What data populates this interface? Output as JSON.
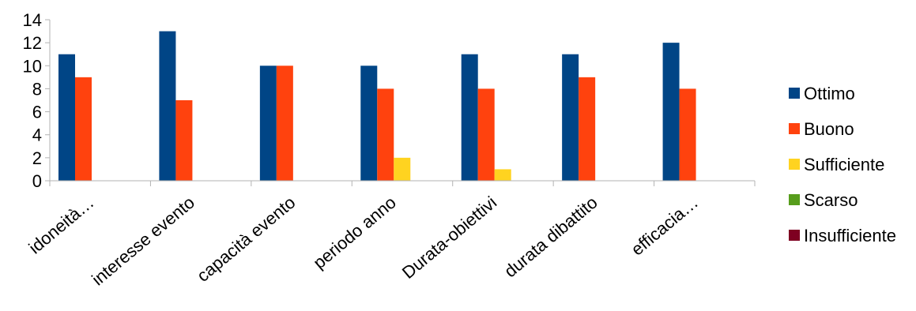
{
  "chart_data": {
    "type": "bar",
    "categories": [
      "idoneità…",
      "interesse evento",
      "capacità evento",
      "periodo anno",
      "Durata-obiettivi",
      "durata dibattito",
      "efficacia…"
    ],
    "series": [
      {
        "name": "Ottimo",
        "color": "#004586",
        "values": [
          11,
          13,
          10,
          10,
          11,
          11,
          12
        ]
      },
      {
        "name": "Buono",
        "color": "#ff420e",
        "values": [
          9,
          7,
          10,
          8,
          8,
          9,
          8
        ]
      },
      {
        "name": "Sufficiente",
        "color": "#ffd320",
        "values": [
          0,
          0,
          0,
          2,
          1,
          0,
          0
        ]
      },
      {
        "name": "Scarso",
        "color": "#579d1c",
        "values": [
          0,
          0,
          0,
          0,
          0,
          0,
          0
        ]
      },
      {
        "name": "Insufficiente",
        "color": "#7e0021",
        "values": [
          0,
          0,
          0,
          0,
          0,
          0,
          0
        ]
      }
    ],
    "yticks": [
      "0",
      "2",
      "4",
      "6",
      "8",
      "10",
      "12",
      "14"
    ],
    "ylim": [
      0,
      14
    ],
    "grid": false,
    "legend": "right"
  }
}
